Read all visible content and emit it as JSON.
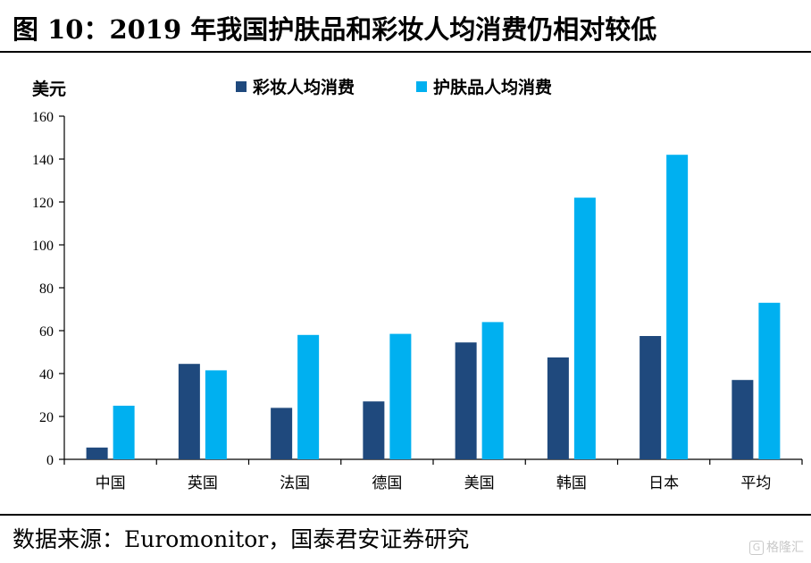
{
  "figure": {
    "title": "图 10：2019 年我国护肤品和彩妆人均消费仍相对较低",
    "source": "数据来源：Euromonitor，国泰君安证券研究"
  },
  "watermark": {
    "glyph": "G",
    "text": "格隆汇"
  },
  "chart_data": {
    "type": "bar",
    "categories": [
      "中国",
      "英国",
      "法国",
      "德国",
      "美国",
      "韩国",
      "日本",
      "平均"
    ],
    "series": [
      {
        "name": "彩妆人均消费",
        "color": "#1f497d",
        "values": [
          5.5,
          44.5,
          24,
          27,
          54.5,
          47.5,
          57.5,
          37
        ]
      },
      {
        "name": "护肤品人均消费",
        "color": "#00b0f0",
        "values": [
          25,
          41.5,
          58,
          58.5,
          64,
          122,
          142,
          73
        ]
      }
    ],
    "ylabel": "美元",
    "ylim": [
      0,
      160
    ],
    "yticks": [
      0,
      20,
      40,
      60,
      80,
      100,
      120,
      140,
      160
    ],
    "grid": false,
    "legend": "top-center"
  }
}
